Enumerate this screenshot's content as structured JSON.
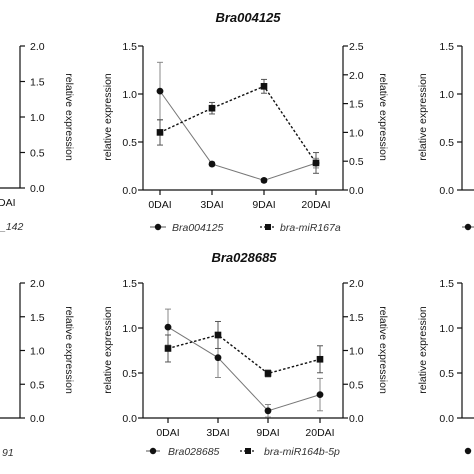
{
  "chart_data": [
    {
      "type": "line",
      "panel": "top-left-fragment",
      "title": "",
      "y2label": "relative expression",
      "y2lim": [
        0,
        2.0
      ],
      "y2ticks": [
        "2.0",
        "1.5",
        "1.0",
        "0.5",
        "0.0"
      ],
      "xtick_fragment": "DAI",
      "legend_fragment": "_142"
    },
    {
      "type": "line",
      "panel": "top-middle",
      "title": "Bra004125",
      "categories": [
        "0DAI",
        "3DAI",
        "9DAI",
        "20DAI"
      ],
      "ylabel": "relative expression",
      "y2label": "relative expression",
      "ylim": [
        0,
        1.5
      ],
      "yticks": [
        "1.5",
        "1.0",
        "0.5",
        "0.0"
      ],
      "y2lim": [
        0,
        2.5
      ],
      "y2ticks": [
        "2.5",
        "2.0",
        "1.5",
        "1.0",
        "0.5",
        "0.0"
      ],
      "series": [
        {
          "name": "Bra004125",
          "marker": "circle",
          "line": "solid",
          "axis": "left",
          "values": [
            1.03,
            0.27,
            0.1,
            0.28
          ],
          "errors": [
            0.3,
            0.02,
            0.02,
            0.05
          ]
        },
        {
          "name": "bra-miR167a",
          "marker": "square",
          "line": "dashed",
          "axis": "right",
          "values": [
            1.0,
            1.42,
            1.8,
            0.47
          ],
          "errors": [
            0.22,
            0.1,
            0.12,
            0.18
          ]
        }
      ]
    },
    {
      "type": "line",
      "panel": "top-right-fragment",
      "ylabel": "relative expression",
      "yticks": [
        "1.5",
        "1.0",
        "0.5",
        "0.0"
      ],
      "legend_fragment": ""
    },
    {
      "type": "line",
      "panel": "bottom-left-fragment",
      "y2label": "relative expression",
      "y2lim": [
        0,
        2.0
      ],
      "y2ticks": [
        "2.0",
        "1.5",
        "1.0",
        "0.5",
        "0.0"
      ],
      "legend_fragment": "91"
    },
    {
      "type": "line",
      "panel": "bottom-middle",
      "title": "Bra028685",
      "categories": [
        "0DAI",
        "3DAI",
        "9DAI",
        "20DAI"
      ],
      "ylabel": "relative expression",
      "y2label": "relative expression",
      "ylim": [
        0,
        1.5
      ],
      "yticks": [
        "1.5",
        "1.0",
        "0.5",
        "0.0"
      ],
      "y2lim": [
        0,
        2.0
      ],
      "y2ticks": [
        "2.0",
        "1.5",
        "1.0",
        "0.5",
        "0.0"
      ],
      "series": [
        {
          "name": "Bra028685",
          "marker": "circle",
          "line": "solid",
          "axis": "left",
          "values": [
            1.01,
            0.67,
            0.08,
            0.26
          ],
          "errors": [
            0.2,
            0.22,
            0.07,
            0.18
          ]
        },
        {
          "name": "bra-miR164b-5p",
          "marker": "square",
          "line": "dashed",
          "axis": "right",
          "values": [
            1.03,
            1.23,
            0.66,
            0.87
          ],
          "errors": [
            0.2,
            0.2,
            0.05,
            0.2
          ]
        }
      ]
    },
    {
      "type": "line",
      "panel": "bottom-right-fragment",
      "ylabel": "relative expression",
      "yticks": [
        "1.5",
        "1.0",
        "0.5",
        "0.0"
      ]
    }
  ]
}
